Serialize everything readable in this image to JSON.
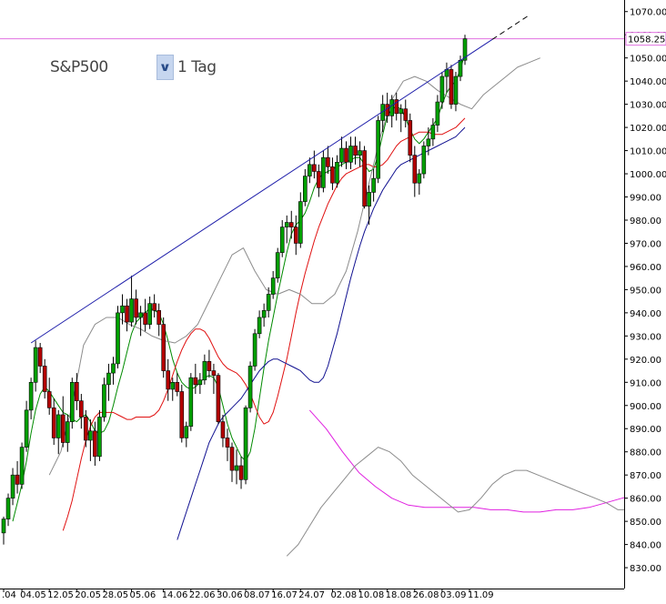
{
  "header": {
    "symbol": "S&P500",
    "period": "1 Tag"
  },
  "colors": {
    "up": "#00a000",
    "down": "#b40000",
    "ma_green": "#008a00",
    "ma_red": "#e01010",
    "ma_blue": "#101090",
    "ma_magenta": "#e020e0",
    "bollinger": "#8c8c8c",
    "trendline": "#1e1eaa",
    "price_line": "#e070e0"
  },
  "icons": {
    "dropdown": "chevron-down-icon"
  },
  "chart_data": {
    "type": "candlestick",
    "ylim": [
      821,
      1075
    ],
    "y_ticks": [
      830,
      840,
      850,
      860,
      870,
      880,
      890,
      900,
      910,
      920,
      930,
      940,
      950,
      960,
      970,
      980,
      990,
      1000,
      1010,
      1020,
      1030,
      1040,
      1050,
      1060,
      1070
    ],
    "x_ticks": [
      {
        "label": ".04",
        "i": 0
      },
      {
        "label": "04.05",
        "i": 4
      },
      {
        "label": "12.05",
        "i": 10
      },
      {
        "label": "20.05",
        "i": 16
      },
      {
        "label": "28.05",
        "i": 22
      },
      {
        "label": "05.06",
        "i": 28
      },
      {
        "label": "14.06",
        "i": 35
      },
      {
        "label": "22.06",
        "i": 41
      },
      {
        "label": "30.06",
        "i": 47
      },
      {
        "label": "08.07",
        "i": 53
      },
      {
        "label": "16.07",
        "i": 59
      },
      {
        "label": "24.07",
        "i": 65
      },
      {
        "label": "02.08",
        "i": 72
      },
      {
        "label": "10.08",
        "i": 78
      },
      {
        "label": "18.08",
        "i": 84
      },
      {
        "label": "26.08",
        "i": 90
      },
      {
        "label": "03.09",
        "i": 96
      },
      {
        "label": "11.09",
        "i": 102
      }
    ],
    "last_price": "1058.25",
    "last_price_value": 1058.25,
    "trendline": {
      "from": [
        6,
        927
      ],
      "to": [
        107,
        1058
      ],
      "extend_to": 115
    },
    "candles": [
      [
        845,
        852,
        840,
        851
      ],
      [
        851,
        862,
        848,
        860
      ],
      [
        860,
        873,
        857,
        870
      ],
      [
        870,
        876,
        862,
        866
      ],
      [
        866,
        884,
        864,
        882
      ],
      [
        882,
        902,
        880,
        898
      ],
      [
        898,
        912,
        894,
        910
      ],
      [
        910,
        928,
        906,
        925
      ],
      [
        925,
        927,
        914,
        917
      ],
      [
        917,
        920,
        903,
        906
      ],
      [
        906,
        912,
        896,
        899
      ],
      [
        899,
        903,
        883,
        886
      ],
      [
        886,
        898,
        879,
        896
      ],
      [
        896,
        904,
        882,
        884
      ],
      [
        884,
        896,
        880,
        893
      ],
      [
        893,
        912,
        890,
        910
      ],
      [
        910,
        914,
        898,
        902
      ],
      [
        902,
        905,
        890,
        895
      ],
      [
        895,
        898,
        882,
        885
      ],
      [
        885,
        894,
        876,
        889
      ],
      [
        889,
        893,
        874,
        878
      ],
      [
        878,
        898,
        876,
        895
      ],
      [
        895,
        912,
        893,
        909
      ],
      [
        909,
        918,
        902,
        914
      ],
      [
        914,
        921,
        909,
        918
      ],
      [
        918,
        943,
        916,
        940
      ],
      [
        940,
        948,
        935,
        943
      ],
      [
        943,
        946,
        932,
        936
      ],
      [
        936,
        956,
        934,
        946
      ],
      [
        946,
        950,
        935,
        938
      ],
      [
        938,
        943,
        930,
        940
      ],
      [
        940,
        946,
        932,
        935
      ],
      [
        935,
        947,
        933,
        944
      ],
      [
        944,
        948,
        938,
        941
      ],
      [
        941,
        944,
        930,
        935
      ],
      [
        935,
        938,
        912,
        915
      ],
      [
        915,
        920,
        902,
        907
      ],
      [
        907,
        912,
        902,
        910
      ],
      [
        910,
        914,
        904,
        906
      ],
      [
        906,
        909,
        884,
        886
      ],
      [
        886,
        893,
        882,
        891
      ],
      [
        891,
        914,
        889,
        912
      ],
      [
        912,
        918,
        905,
        909
      ],
      [
        909,
        914,
        905,
        911
      ],
      [
        911,
        922,
        909,
        919
      ],
      [
        919,
        924,
        912,
        915
      ],
      [
        915,
        918,
        905,
        913
      ],
      [
        913,
        914,
        892,
        893
      ],
      [
        893,
        896,
        882,
        886
      ],
      [
        886,
        890,
        876,
        882
      ],
      [
        882,
        884,
        867,
        872
      ],
      [
        872,
        881,
        866,
        874
      ],
      [
        874,
        878,
        864,
        868
      ],
      [
        868,
        900,
        866,
        899
      ],
      [
        899,
        919,
        897,
        917
      ],
      [
        917,
        933,
        915,
        931
      ],
      [
        931,
        941,
        929,
        938
      ],
      [
        938,
        944,
        934,
        941
      ],
      [
        941,
        951,
        938,
        948
      ],
      [
        948,
        958,
        946,
        955
      ],
      [
        955,
        968,
        953,
        966
      ],
      [
        966,
        980,
        964,
        977
      ],
      [
        977,
        982,
        970,
        979
      ],
      [
        979,
        984,
        972,
        977
      ],
      [
        977,
        982,
        965,
        970
      ],
      [
        970,
        992,
        968,
        988
      ],
      [
        988,
        1002,
        986,
        999
      ],
      [
        999,
        1007,
        996,
        1004
      ],
      [
        1004,
        1010,
        998,
        1001
      ],
      [
        1001,
        1004,
        990,
        994
      ],
      [
        994,
        1010,
        992,
        1007
      ],
      [
        1007,
        1012,
        1000,
        1003
      ],
      [
        1003,
        1007,
        993,
        996
      ],
      [
        996,
        1008,
        994,
        1005
      ],
      [
        1005,
        1016,
        1003,
        1011
      ],
      [
        1011,
        1014,
        1002,
        1005
      ],
      [
        1005,
        1016,
        1002,
        1012
      ],
      [
        1012,
        1016,
        1004,
        1008
      ],
      [
        1008,
        1014,
        1003,
        1010
      ],
      [
        1010,
        1012,
        985,
        986
      ],
      [
        986,
        995,
        978,
        992
      ],
      [
        992,
        1002,
        988,
        998
      ],
      [
        998,
        1025,
        996,
        1023
      ],
      [
        1023,
        1034,
        1018,
        1030
      ],
      [
        1030,
        1035,
        1022,
        1025
      ],
      [
        1025,
        1034,
        1020,
        1032
      ],
      [
        1032,
        1035,
        1023,
        1026
      ],
      [
        1026,
        1030,
        1018,
        1028
      ],
      [
        1028,
        1032,
        1020,
        1023
      ],
      [
        1023,
        1026,
        1005,
        1008
      ],
      [
        1008,
        1012,
        990,
        996
      ],
      [
        996,
        1002,
        991,
        1000
      ],
      [
        1000,
        1014,
        998,
        1012
      ],
      [
        1012,
        1020,
        1008,
        1015
      ],
      [
        1015,
        1024,
        1012,
        1021
      ],
      [
        1021,
        1034,
        1018,
        1031
      ],
      [
        1031,
        1044,
        1028,
        1042
      ],
      [
        1042,
        1048,
        1035,
        1045
      ],
      [
        1045,
        1047,
        1028,
        1030
      ],
      [
        1030,
        1044,
        1027,
        1042
      ],
      [
        1042,
        1051,
        1040,
        1049
      ],
      [
        1049,
        1060,
        1047,
        1058.25
      ]
    ],
    "series": [
      {
        "type": "ma",
        "color": "ma_green",
        "values": [
          850,
          858,
          866,
          876,
          888,
          898,
          905,
          908,
          906,
          903,
          900,
          897,
          896,
          894,
          893,
          895,
          896,
          893,
          889,
          888,
          889,
          893,
          900,
          908,
          915,
          923,
          931,
          936,
          938,
          940,
          942,
          941,
          940,
          935,
          928,
          920,
          914,
          910,
          908,
          907,
          908,
          910,
          912,
          913,
          912,
          908,
          900,
          892,
          886,
          882,
          878,
          876,
          880,
          890,
          903,
          916,
          928,
          938,
          948,
          957,
          966,
          974,
          978,
          980,
          983,
          988,
          994,
          998,
          1000,
          1001,
          1002,
          1003,
          1004,
          1005,
          1006,
          1007,
          1007,
          1004,
          1001,
          1002,
          1008,
          1017,
          1025,
          1028,
          1029,
          1028,
          1024,
          1019,
          1015,
          1013,
          1015,
          1018,
          1021,
          1024,
          1030,
          1035,
          1038,
          1040,
          1045,
          1052
        ]
      },
      {
        "type": "ma",
        "color": "ma_red",
        "values": [
          846,
          852,
          859,
          868,
          877,
          885,
          891,
          895,
          897,
          897,
          897,
          897,
          896,
          895,
          894,
          894,
          895,
          895,
          895,
          895,
          896,
          898,
          902,
          907,
          913,
          919,
          924,
          928,
          931,
          933,
          933,
          932,
          929,
          925,
          921,
          918,
          916,
          915,
          914,
          912,
          909,
          905,
          900,
          895,
          892,
          893,
          897,
          904,
          912,
          920,
          930,
          940,
          949,
          957,
          964,
          971,
          977,
          982,
          987,
          991,
          995,
          998,
          1000,
          1001,
          1002,
          1003,
          1004,
          1004,
          1003,
          1003,
          1004,
          1006,
          1009,
          1012,
          1014,
          1015,
          1016,
          1017,
          1018,
          1018,
          1018,
          1017,
          1017,
          1017,
          1018,
          1019,
          1020,
          1022,
          1024
        ]
      },
      {
        "type": "ma",
        "color": "ma_blue",
        "values": [
          842,
          848,
          854,
          860,
          866,
          872,
          878,
          884,
          888,
          892,
          895,
          897,
          899,
          901,
          903,
          906,
          909,
          912,
          915,
          917,
          919,
          920,
          920,
          919,
          918,
          917,
          916,
          915,
          913,
          911,
          910,
          910,
          912,
          917,
          924,
          931,
          939,
          947,
          955,
          962,
          969,
          975,
          980,
          985,
          989,
          993,
          996,
          999,
          1002,
          1004,
          1005,
          1006,
          1007,
          1008,
          1009,
          1010,
          1011,
          1012,
          1013,
          1014,
          1015,
          1016,
          1018,
          1020
        ]
      },
      {
        "type": "ma",
        "color": "ma_magenta",
        "values": [
          898,
          890,
          880,
          871,
          865,
          860,
          857,
          856,
          856,
          856,
          856,
          855,
          855,
          854,
          854,
          855,
          855,
          856,
          858,
          860,
          862,
          864,
          866,
          868,
          870,
          871,
          873,
          875,
          877,
          879,
          881,
          883,
          885,
          887,
          890
        ]
      },
      {
        "type": "band",
        "color": "bollinger",
        "values": [
          870,
          880,
          900,
          926,
          935,
          938,
          938,
          935,
          933,
          930,
          928,
          927,
          930,
          935,
          945,
          955,
          965,
          968,
          958,
          950,
          948,
          950,
          948,
          944,
          944,
          948,
          958,
          975,
          996,
          1016,
          1032,
          1040,
          1042,
          1040,
          1036,
          1033,
          1030,
          1028,
          1034,
          1038,
          1042,
          1046,
          1048,
          1050
        ]
      },
      {
        "type": "band",
        "color": "bollinger",
        "values": [
          835,
          840,
          848,
          856,
          862,
          868,
          874,
          878,
          882,
          880,
          876,
          870,
          866,
          862,
          858,
          854,
          855,
          860,
          866,
          870,
          872,
          872,
          870,
          868,
          866,
          864,
          862,
          860,
          858,
          855,
          855,
          860,
          868,
          880,
          905,
          935,
          955,
          968,
          974,
          978,
          980,
          982,
          984,
          986,
          988,
          990,
          990,
          988,
          987,
          990,
          994,
          996,
          998,
          998
        ]
      }
    ]
  }
}
